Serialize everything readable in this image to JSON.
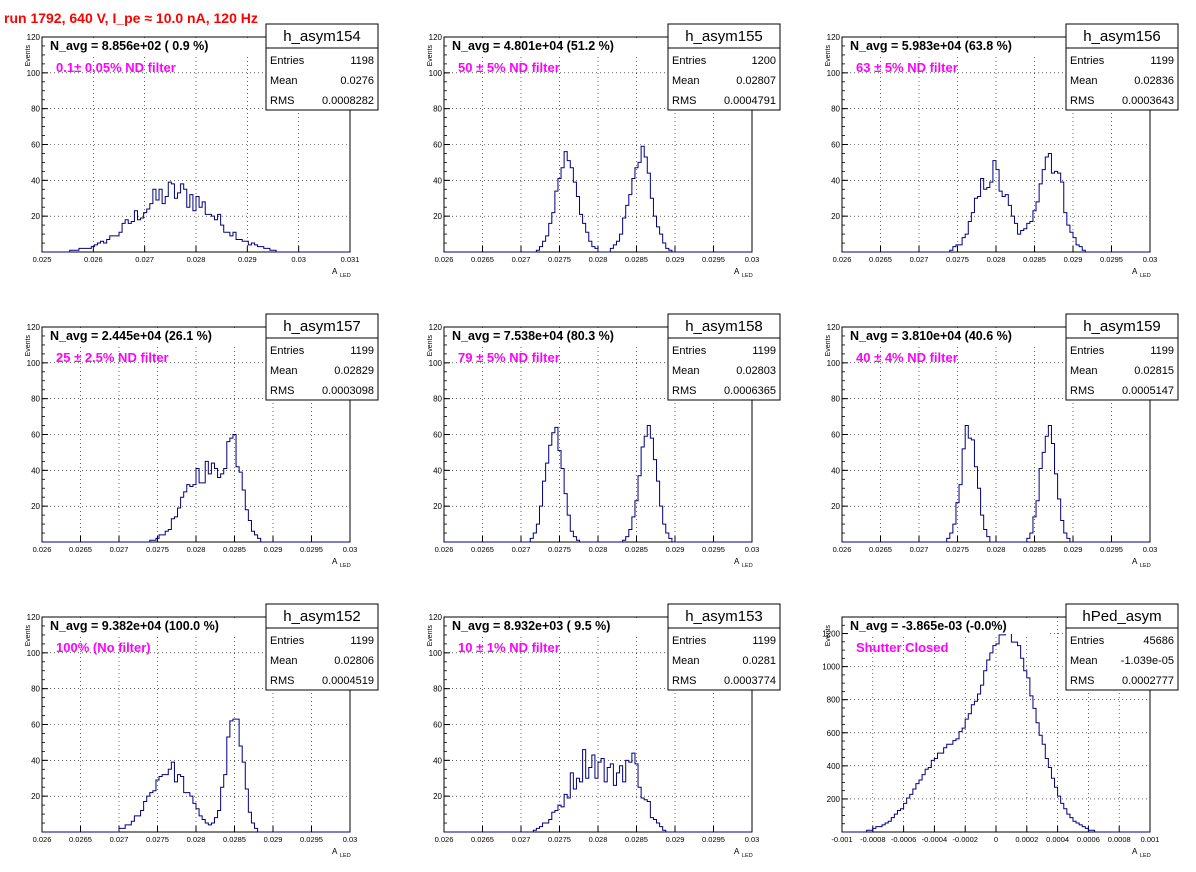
{
  "run_title": "run 1792,   640 V, I_pe ≈ 10.0 nA, 120 Hz",
  "colors": {
    "histogram": "#000080",
    "annotation": "#ff00ff",
    "title": "#ff0000",
    "grid": "#000000"
  },
  "stat_labels": {
    "entries": "Entries",
    "mean": "Mean",
    "rms": "RMS"
  },
  "y_axis_label": "Events",
  "x_axis_label_main": "A",
  "x_axis_label_sub": "LED",
  "chart_data": [
    {
      "type": "histogram",
      "name": "h_asym154",
      "navg": "N_avg = 8.856e+02 ( 0.9 %)",
      "annotation": "0.1± 0.05% ND filter",
      "entries": "1198",
      "mean": "0.0276",
      "rms": "0.0008282",
      "xlim": [
        0.025,
        0.031
      ],
      "ylim": [
        0,
        120
      ],
      "xticks": [
        "0.025",
        "0.026",
        "0.027",
        "0.028",
        "0.029",
        "0.03",
        "0.031"
      ],
      "yticks": [
        "20",
        "40",
        "60",
        "80",
        "100",
        "120"
      ],
      "peaks": [
        {
          "mu": 0.0276,
          "sigma": 0.00075,
          "height": 33
        }
      ],
      "noise": 0.25
    },
    {
      "type": "histogram",
      "name": "h_asym155",
      "navg": "N_avg = 4.801e+04 (51.2 %)",
      "annotation": "50 ± 5% ND filter",
      "entries": "1200",
      "mean": "0.02807",
      "rms": "0.0004791",
      "xlim": [
        0.026,
        0.03
      ],
      "ylim": [
        0,
        120
      ],
      "xticks": [
        "0.026",
        "0.0265",
        "0.027",
        "0.0275",
        "0.028",
        "0.0285",
        "0.029",
        "0.0295",
        "0.03"
      ],
      "yticks": [
        "20",
        "40",
        "60",
        "80",
        "100",
        "120"
      ],
      "peaks": [
        {
          "mu": 0.0276,
          "sigma": 0.00014,
          "height": 54
        },
        {
          "mu": 0.02855,
          "sigma": 0.00014,
          "height": 56
        }
      ],
      "noise": 0.15
    },
    {
      "type": "histogram",
      "name": "h_asym156",
      "navg": "N_avg = 5.983e+04 (63.8 %)",
      "annotation": "63 ± 5% ND filter",
      "entries": "1199",
      "mean": "0.02836",
      "rms": "0.0003643",
      "xlim": [
        0.026,
        0.03
      ],
      "ylim": [
        0,
        120
      ],
      "xticks": [
        "0.026",
        "0.0265",
        "0.027",
        "0.0275",
        "0.028",
        "0.0285",
        "0.029",
        "0.0295",
        "0.03"
      ],
      "yticks": [
        "20",
        "40",
        "60",
        "80",
        "100",
        "120"
      ],
      "peaks": [
        {
          "mu": 0.02795,
          "sigma": 0.0002,
          "height": 44
        },
        {
          "mu": 0.0287,
          "sigma": 0.00016,
          "height": 55
        }
      ],
      "noise": 0.2
    },
    {
      "type": "histogram",
      "name": "h_asym157",
      "navg": "N_avg = 2.445e+04 (26.1 %)",
      "annotation": "25 ± 2.5% ND filter",
      "entries": "1199",
      "mean": "0.02829",
      "rms": "0.0003098",
      "xlim": [
        0.026,
        0.03
      ],
      "ylim": [
        0,
        120
      ],
      "xticks": [
        "0.026",
        "0.0265",
        "0.027",
        "0.0275",
        "0.028",
        "0.0285",
        "0.029",
        "0.0295",
        "0.03"
      ],
      "yticks": [
        "20",
        "40",
        "60",
        "80",
        "100",
        "120"
      ],
      "peaks": [
        {
          "mu": 0.0281,
          "sigma": 0.00025,
          "height": 40
        },
        {
          "mu": 0.0285,
          "sigma": 0.00012,
          "height": 45
        }
      ],
      "noise": 0.2
    },
    {
      "type": "histogram",
      "name": "h_asym158",
      "navg": "N_avg = 7.538e+04 (80.3 %)",
      "annotation": "79 ± 5% ND filter",
      "entries": "1199",
      "mean": "0.02803",
      "rms": "0.0006365",
      "xlim": [
        0.026,
        0.03
      ],
      "ylim": [
        0,
        120
      ],
      "xticks": [
        "0.026",
        "0.0265",
        "0.027",
        "0.0275",
        "0.028",
        "0.0285",
        "0.029",
        "0.0295",
        "0.03"
      ],
      "yticks": [
        "20",
        "40",
        "60",
        "80",
        "100",
        "120"
      ],
      "peaks": [
        {
          "mu": 0.02743,
          "sigma": 0.00011,
          "height": 62
        },
        {
          "mu": 0.02865,
          "sigma": 0.00011,
          "height": 62
        }
      ],
      "noise": 0.12
    },
    {
      "type": "histogram",
      "name": "h_asym159",
      "navg": "N_avg = 3.810e+04 (40.6 %)",
      "annotation": "40 ± 4% ND filter",
      "entries": "1199",
      "mean": "0.02815",
      "rms": "0.0005147",
      "xlim": [
        0.026,
        0.03
      ],
      "ylim": [
        0,
        120
      ],
      "xticks": [
        "0.026",
        "0.0265",
        "0.027",
        "0.0275",
        "0.028",
        "0.0285",
        "0.029",
        "0.0295",
        "0.03"
      ],
      "yticks": [
        "20",
        "40",
        "60",
        "80",
        "100",
        "120"
      ],
      "peaks": [
        {
          "mu": 0.02765,
          "sigma": 0.0001,
          "height": 64
        },
        {
          "mu": 0.02868,
          "sigma": 0.0001,
          "height": 64
        }
      ],
      "noise": 0.12
    },
    {
      "type": "histogram",
      "name": "h_asym152",
      "navg": "N_avg = 9.382e+04 (100.0 %)",
      "annotation": "100% (No filter)",
      "entries": "1199",
      "mean": "0.02806",
      "rms": "0.0004519",
      "xlim": [
        0.026,
        0.03
      ],
      "ylim": [
        0,
        120
      ],
      "xticks": [
        "0.026",
        "0.0265",
        "0.027",
        "0.0275",
        "0.028",
        "0.0285",
        "0.029",
        "0.0295",
        "0.03"
      ],
      "yticks": [
        "20",
        "40",
        "60",
        "80",
        "100",
        "120"
      ],
      "peaks": [
        {
          "mu": 0.02765,
          "sigma": 0.00025,
          "height": 35
        },
        {
          "mu": 0.0285,
          "sigma": 0.00011,
          "height": 62
        }
      ],
      "noise": 0.15
    },
    {
      "type": "histogram",
      "name": "h_asym153",
      "navg": "N_avg = 8.932e+03 ( 9.5 %)",
      "annotation": "10 ± 1% ND filter",
      "entries": "1199",
      "mean": "0.0281",
      "rms": "0.0003774",
      "xlim": [
        0.026,
        0.03
      ],
      "ylim": [
        0,
        120
      ],
      "xticks": [
        "0.026",
        "0.0265",
        "0.027",
        "0.0275",
        "0.028",
        "0.0285",
        "0.029",
        "0.0295",
        "0.03"
      ],
      "yticks": [
        "20",
        "40",
        "60",
        "80",
        "100",
        "120"
      ],
      "peaks": [
        {
          "mu": 0.0279,
          "sigma": 0.00028,
          "height": 40
        },
        {
          "mu": 0.02845,
          "sigma": 0.00016,
          "height": 32
        }
      ],
      "noise": 0.25
    },
    {
      "type": "histogram",
      "name": "hPed_asym",
      "navg": "N_avg = -3.865e-03 (-0.0%)",
      "annotation": "Shutter Closed",
      "entries": "45686",
      "mean": "-1.039e-05",
      "rms": "0.0002777",
      "xlim": [
        -0.001,
        0.001
      ],
      "ylim": [
        0,
        1300
      ],
      "xticks": [
        "-0.001",
        "-0.0008",
        "-0.0006",
        "-0.0004",
        "-0.0002",
        "0",
        "0.0002",
        "0.0004",
        "0.0006",
        "0.0008",
        "0.001"
      ],
      "yticks": [
        "200",
        "400",
        "600",
        "800",
        "1000",
        "1200"
      ],
      "peaks": [
        {
          "mu": -0.00035,
          "sigma": 0.00018,
          "height": 420
        },
        {
          "mu": 8e-05,
          "sigma": 0.00018,
          "height": 1180
        }
      ],
      "noise": 0.03
    }
  ]
}
